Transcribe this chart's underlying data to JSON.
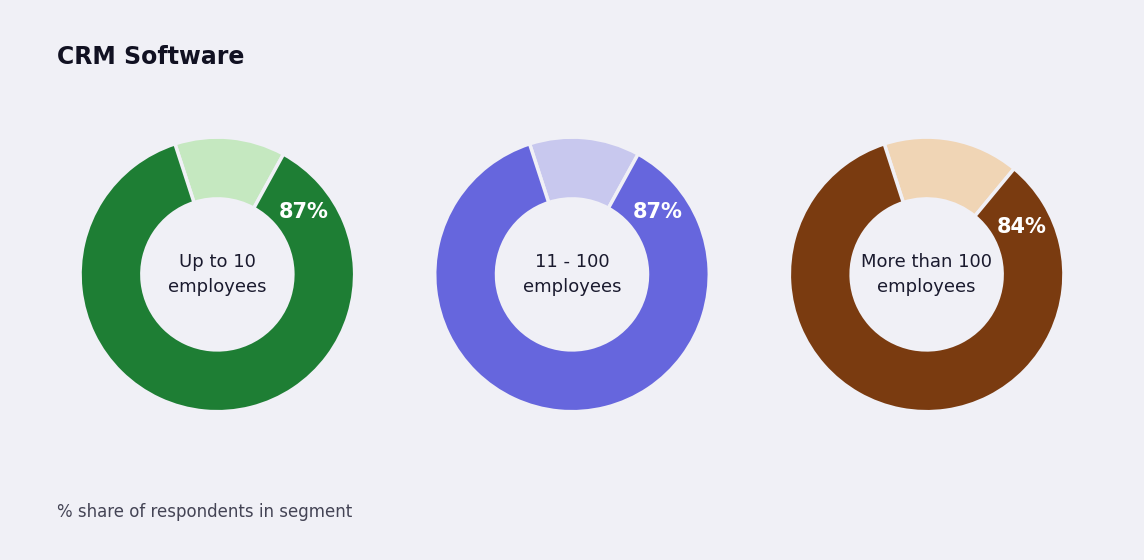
{
  "title": "CRM Software",
  "footnote": "% share of respondents in segment",
  "background_color": "#f0f0f6",
  "charts": [
    {
      "label": "Up to 10\nemployees",
      "pct": 87,
      "main_color": "#1e7e34",
      "light_color": "#c5e8c0",
      "pct_text_color": "#ffffff",
      "label_text_color": "#1a1a2e"
    },
    {
      "label": "11 - 100\nemployees",
      "pct": 87,
      "main_color": "#6666dd",
      "light_color": "#c8c8ee",
      "pct_text_color": "#ffffff",
      "label_text_color": "#1a1a2e"
    },
    {
      "label": "More than 100\nemployees",
      "pct": 84,
      "main_color": "#7a3b10",
      "light_color": "#f0d5b5",
      "pct_text_color": "#ffffff",
      "label_text_color": "#1a1a2e"
    }
  ],
  "title_fontsize": 17,
  "footnote_fontsize": 12,
  "pct_fontsize": 15,
  "label_fontsize": 13,
  "donut_width": 0.45,
  "start_angle": 108
}
